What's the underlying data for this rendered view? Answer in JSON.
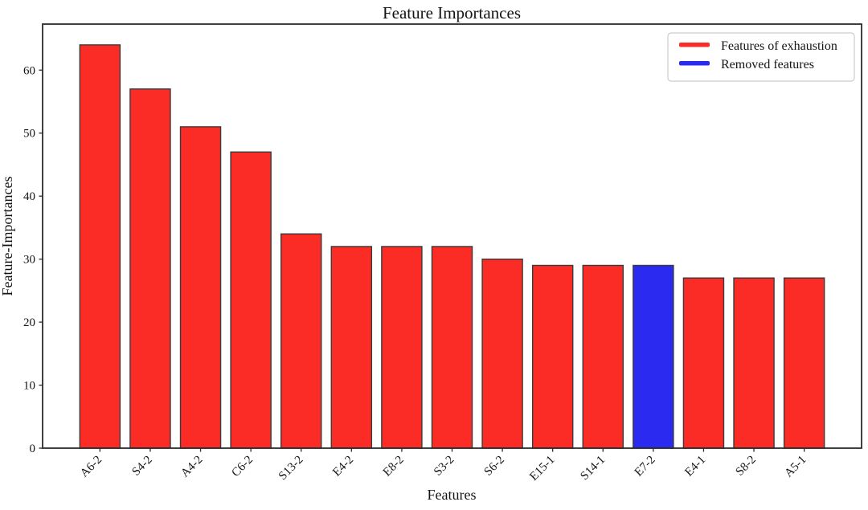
{
  "chart_data": {
    "type": "bar",
    "title": "Feature Importances",
    "xlabel": "Features",
    "ylabel": "Feature-Importances",
    "categories": [
      "A6-2",
      "S4-2",
      "A4-2",
      "C6-2",
      "S13-2",
      "E4-2",
      "E8-2",
      "S3-2",
      "S6-2",
      "E15-1",
      "S14-1",
      "E7-2",
      "E4-1",
      "S8-2",
      "A5-1"
    ],
    "values": [
      64,
      57,
      51,
      47,
      34,
      32,
      32,
      32,
      30,
      29,
      29,
      29,
      27,
      27,
      27
    ],
    "bar_colors": [
      "red",
      "red",
      "red",
      "red",
      "red",
      "red",
      "red",
      "red",
      "red",
      "red",
      "red",
      "blue",
      "red",
      "red",
      "red"
    ],
    "colors": {
      "red": "#fb2b26",
      "blue": "#2b2af0",
      "edge": "#3a3a3a",
      "spine": "#2b2b2b"
    },
    "yticks": [
      0,
      10,
      20,
      30,
      40,
      50,
      60
    ],
    "ylim": [
      0,
      67.3
    ],
    "xlim": [
      -1.14,
      15.14
    ],
    "bar_width": 0.8,
    "grid": false,
    "tick_label_rotation": 45,
    "legend": {
      "position": "upper right",
      "entries": [
        {
          "label": "Features of exhaustion",
          "color": "#fb2b26"
        },
        {
          "label": "Removed features",
          "color": "#2b2af0"
        }
      ]
    }
  }
}
